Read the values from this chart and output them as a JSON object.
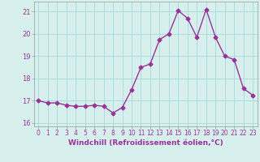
{
  "x": [
    0,
    1,
    2,
    3,
    4,
    5,
    6,
    7,
    8,
    9,
    10,
    11,
    12,
    13,
    14,
    15,
    16,
    17,
    18,
    19,
    20,
    21,
    22,
    23
  ],
  "y": [
    17.0,
    16.9,
    16.9,
    16.8,
    16.75,
    16.75,
    16.8,
    16.75,
    16.45,
    16.7,
    17.5,
    18.5,
    18.65,
    19.75,
    20.0,
    21.05,
    20.7,
    19.85,
    21.1,
    19.85,
    19.0,
    18.85,
    17.55,
    17.25
  ],
  "line_color": "#993399",
  "marker": "D",
  "marker_size": 2.5,
  "bg_color": "#d7f0ee",
  "grid_color": "#aadddd",
  "xlabel": "Windchill (Refroidissement éolien,°C)",
  "xlabel_color": "#993399",
  "tick_color": "#993399",
  "ylim": [
    15.85,
    21.45
  ],
  "xlim": [
    -0.5,
    23.5
  ],
  "yticks": [
    16,
    17,
    18,
    19,
    20,
    21
  ],
  "xticks": [
    0,
    1,
    2,
    3,
    4,
    5,
    6,
    7,
    8,
    9,
    10,
    11,
    12,
    13,
    14,
    15,
    16,
    17,
    18,
    19,
    20,
    21,
    22,
    23
  ],
  "tick_fontsize": 5.5,
  "xlabel_fontsize": 6.5,
  "linewidth": 1.0
}
